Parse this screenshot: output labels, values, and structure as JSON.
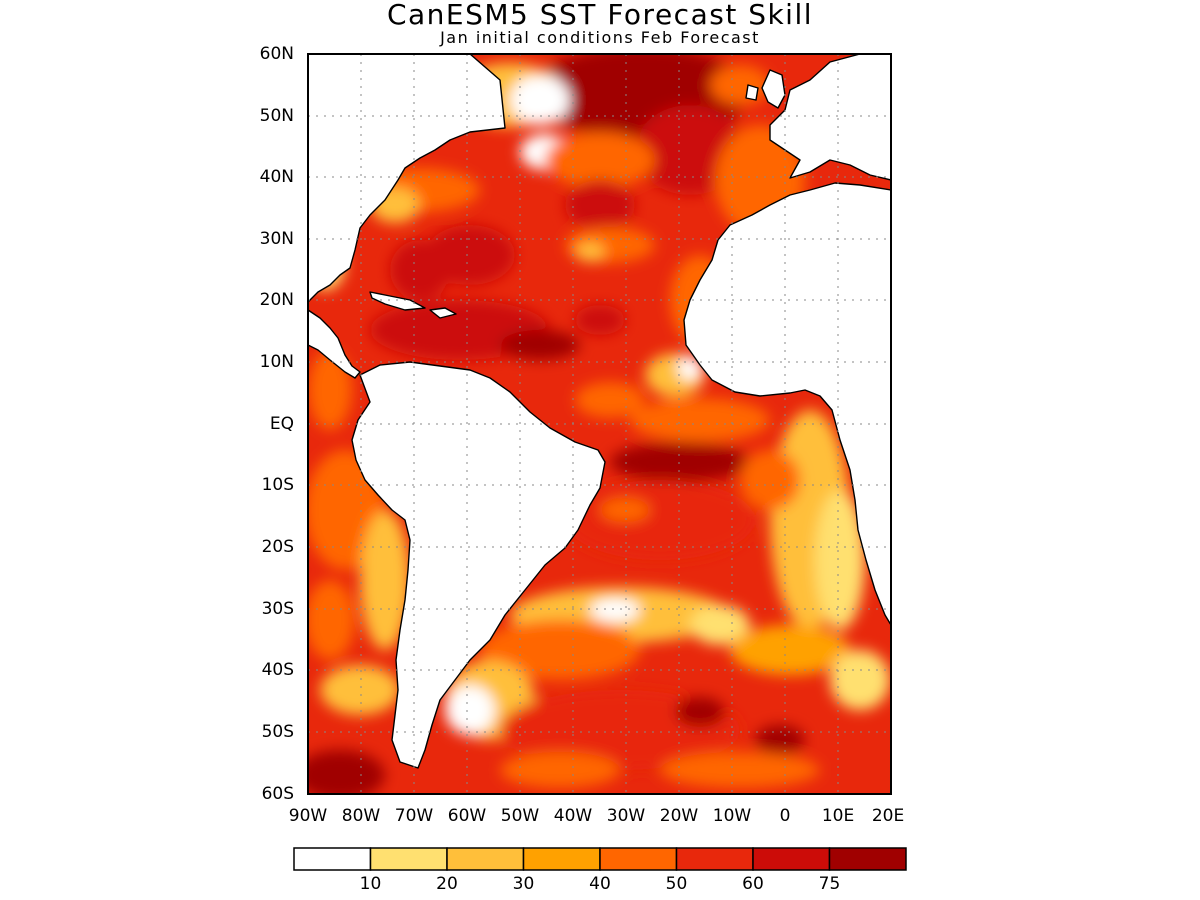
{
  "header": {
    "title": "CanESM5 SST Forecast Skill",
    "subtitle": "Jan initial conditions  Feb Forecast"
  },
  "map": {
    "region": "Atlantic Ocean",
    "lat_labels": [
      "60N",
      "50N",
      "40N",
      "30N",
      "20N",
      "10N",
      "EQ",
      "10S",
      "20S",
      "30S",
      "40S",
      "50S",
      "60S"
    ],
    "lon_labels": [
      "90W",
      "80W",
      "70W",
      "60W",
      "50W",
      "40W",
      "30W",
      "20W",
      "10W",
      "0",
      "10E",
      "20E"
    ],
    "lat_range": [
      -60,
      60
    ],
    "lon_range": [
      -90,
      20
    ],
    "grid": true,
    "land_color": "#ffffff"
  },
  "colorbar": {
    "labels": [
      "10",
      "20",
      "30",
      "40",
      "50",
      "60",
      "75"
    ],
    "colors": [
      "#ffffff",
      "#ffe070",
      "#ffbf3a",
      "#ffa100",
      "#ff6600",
      "#e8280c",
      "#cc0c08",
      "#a00000"
    ]
  },
  "chart_data": {
    "type": "heatmap",
    "title": "CanESM5 SST Forecast Skill",
    "subtitle": "Jan initial conditions  Feb Forecast",
    "xlim": [
      -90,
      20
    ],
    "ylim": [
      -60,
      60
    ],
    "levels": [
      10,
      20,
      30,
      40,
      50,
      60,
      75
    ],
    "x_ticks": [
      "90W",
      "80W",
      "70W",
      "60W",
      "50W",
      "40W",
      "30W",
      "20W",
      "10W",
      "0",
      "10E",
      "20E"
    ],
    "y_ticks": [
      "60N",
      "50N",
      "40N",
      "30N",
      "20N",
      "10N",
      "EQ",
      "10S",
      "20S",
      "30S",
      "40S",
      "50S",
      "60S"
    ]
  }
}
